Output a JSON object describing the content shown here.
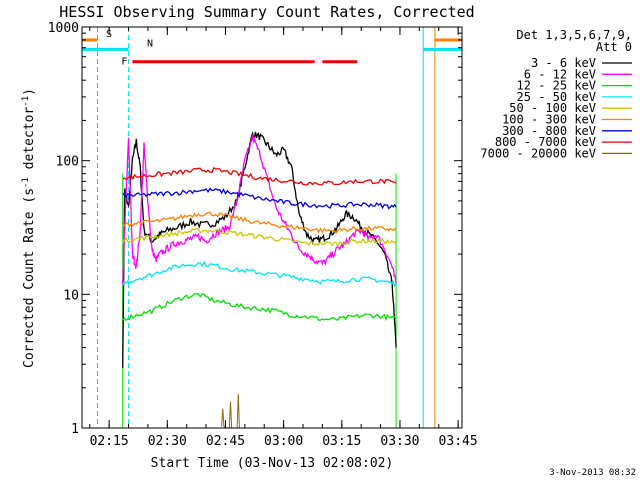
{
  "chart_data": {
    "type": "line",
    "title": "HESSI Observing Summary Count Rates, Corrected",
    "xlabel": "Start Time (03-Nov-13 02:08:02)",
    "ylabel_main": "Corrected Count Rate (s",
    "ylabel_sup1": "-1",
    "ylabel_mid": " detector",
    "ylabel_sup2": "-1",
    "ylabel_end": ")",
    "yscale": "log",
    "ylim": [
      1,
      1000
    ],
    "xlim_minutes": [
      0,
      98
    ],
    "xticks": [
      {
        "m": 7,
        "label": "02:15"
      },
      {
        "m": 22,
        "label": "02:30"
      },
      {
        "m": 37,
        "label": "02:45"
      },
      {
        "m": 52,
        "label": "03:00"
      },
      {
        "m": 67,
        "label": "03:15"
      },
      {
        "m": 82,
        "label": "03:30"
      },
      {
        "m": 97,
        "label": "03:45"
      }
    ],
    "yticks": [
      {
        "v": 1,
        "label": "1"
      },
      {
        "v": 10,
        "label": "10"
      },
      {
        "v": 100,
        "label": "100"
      },
      {
        "v": 1000,
        "label": "1000"
      }
    ],
    "legend_header": [
      "Det 1,3,5,6,7,9,",
      "Att 0"
    ],
    "legend_position": "right",
    "series": [
      {
        "name": "3 - 6 keV",
        "color": "#000000",
        "x": [
          10.5,
          11,
          12,
          13,
          14,
          15,
          16,
          18,
          20,
          22,
          25,
          28,
          31,
          34,
          37,
          40,
          42,
          44,
          46,
          48,
          50,
          52,
          54,
          56,
          58,
          60,
          62,
          64,
          66,
          68,
          70,
          72,
          74,
          76,
          78,
          80,
          81
        ],
        "y": [
          3,
          60,
          45,
          100,
          140,
          90,
          30,
          25,
          28,
          30,
          32,
          35,
          33,
          34,
          38,
          50,
          90,
          160,
          150,
          130,
          110,
          120,
          90,
          40,
          28,
          25,
          26,
          28,
          32,
          40,
          38,
          32,
          28,
          25,
          20,
          12,
          4
        ]
      },
      {
        "name": "6 - 12 keV",
        "color": "#ff00ff",
        "x": [
          10.5,
          11,
          12,
          13,
          14,
          15,
          16,
          17,
          18,
          19,
          20,
          22,
          24,
          26,
          28,
          30,
          32,
          34,
          36,
          38,
          40,
          42,
          44,
          46,
          48,
          50,
          52,
          54,
          56,
          58,
          60,
          62,
          64,
          66,
          68,
          70,
          72,
          74,
          76,
          78,
          80,
          81
        ],
        "y": [
          12,
          30,
          150,
          20,
          16,
          30,
          130,
          50,
          22,
          18,
          20,
          22,
          24,
          25,
          26,
          27,
          25,
          28,
          30,
          32,
          50,
          100,
          150,
          110,
          70,
          45,
          35,
          28,
          22,
          20,
          18,
          17,
          19,
          22,
          24,
          28,
          30,
          26,
          28,
          22,
          16,
          12
        ]
      },
      {
        "name": "12 - 25 keV",
        "color": "#00dd00",
        "x": [
          10.5,
          14,
          18,
          22,
          26,
          30,
          34,
          38,
          42,
          46,
          50,
          54,
          58,
          62,
          66,
          70,
          74,
          78,
          81
        ],
        "y": [
          6.5,
          7,
          7.5,
          8.5,
          9.5,
          10,
          9,
          8.5,
          8,
          7.8,
          7.5,
          7,
          6.8,
          6.5,
          6.5,
          6.8,
          7,
          6.8,
          6.5
        ]
      },
      {
        "name": "25 - 50 keV",
        "color": "#00e5ee",
        "x": [
          10.5,
          14,
          18,
          22,
          26,
          30,
          34,
          38,
          42,
          46,
          50,
          54,
          58,
          62,
          66,
          70,
          74,
          78,
          81
        ],
        "y": [
          12,
          13,
          14,
          15.5,
          16.5,
          17,
          16.5,
          15.5,
          15,
          14.5,
          14,
          13.5,
          13,
          12.5,
          12.5,
          13,
          13,
          12.5,
          12
        ]
      },
      {
        "name": "50 - 100 keV",
        "color": "#c8c800",
        "x": [
          10.5,
          14,
          18,
          22,
          26,
          30,
          34,
          38,
          42,
          46,
          50,
          54,
          58,
          62,
          66,
          70,
          74,
          78,
          81
        ],
        "y": [
          25,
          26,
          27,
          28,
          29,
          30,
          30,
          29,
          28,
          27,
          26,
          25,
          24,
          24,
          24,
          25,
          25,
          25,
          24
        ]
      },
      {
        "name": "100 - 300 keV",
        "color": "#ff7f00",
        "x": [
          10.5,
          14,
          18,
          22,
          26,
          30,
          34,
          38,
          42,
          46,
          50,
          54,
          58,
          62,
          66,
          70,
          74,
          78,
          81
        ],
        "y": [
          33,
          34,
          35,
          36,
          38,
          40,
          40,
          38,
          36,
          34,
          33,
          32,
          31,
          30,
          30,
          31,
          31,
          31,
          30
        ]
      },
      {
        "name": "300 - 800 keV",
        "color": "#0000ee",
        "x": [
          10.5,
          14,
          18,
          22,
          26,
          30,
          34,
          38,
          42,
          46,
          50,
          54,
          58,
          62,
          66,
          70,
          74,
          78,
          81
        ],
        "y": [
          55,
          55,
          56,
          57,
          58,
          60,
          60,
          58,
          55,
          52,
          50,
          48,
          47,
          46,
          46,
          47,
          47,
          46,
          45
        ]
      },
      {
        "name": "800 - 7000 keV",
        "color": "#ee0000",
        "x": [
          10.5,
          14,
          18,
          22,
          26,
          30,
          34,
          38,
          42,
          46,
          50,
          54,
          58,
          62,
          66,
          70,
          74,
          78,
          81
        ],
        "y": [
          75,
          76,
          78,
          80,
          82,
          85,
          85,
          82,
          78,
          74,
          72,
          70,
          68,
          68,
          68,
          70,
          70,
          70,
          68
        ]
      },
      {
        "name": "7000 - 20000 keV",
        "color": "#8b6914",
        "x": [
          36,
          36.3,
          36.6,
          38,
          38.3,
          38.6,
          40,
          40.3,
          40.6
        ],
        "y": [
          1,
          1.4,
          1,
          1,
          1.6,
          1,
          1,
          1.8,
          1
        ]
      }
    ],
    "flags": [
      {
        "label": "S",
        "color": "#ff7f00",
        "y": 800,
        "segments": [
          [
            0,
            4
          ],
          [
            91,
            98
          ]
        ],
        "vlines": [
          4,
          91
        ]
      },
      {
        "label": "N",
        "color": "#00e5ee",
        "y": 680,
        "segments": [
          [
            0,
            12
          ],
          [
            88,
            98
          ]
        ],
        "vlines": [
          12,
          88
        ]
      },
      {
        "label": "F",
        "color": "#ee0000",
        "y": 550,
        "segments": [
          [
            13,
            60
          ],
          [
            62,
            71
          ]
        ],
        "vlines": []
      }
    ]
  },
  "footer": {
    "timestamp": "3-Nov-2013 08:32"
  }
}
